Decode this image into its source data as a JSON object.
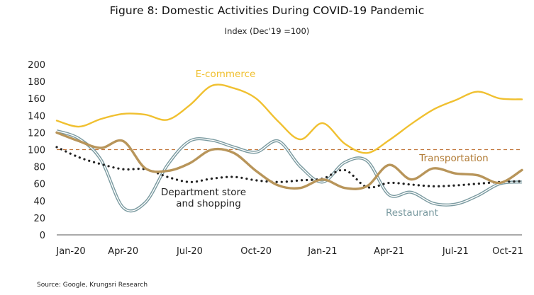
{
  "title": "Figure 8: Domestic Activities During COVID-19 Pandemic",
  "subtitle": "Index (Dec'19 =100)",
  "source": "Source:  Google,  Krungsri  Research",
  "chart_data": {
    "type": "line",
    "ylim": [
      0,
      200
    ],
    "yticks": [
      "0",
      "20",
      "40",
      "60",
      "80",
      "100",
      "120",
      "140",
      "160",
      "180",
      "200"
    ],
    "xticks": [
      "Jan-20",
      "Apr-20",
      "Jul-20",
      "Oct-20",
      "Jan-21",
      "Apr-21",
      "Jul-21",
      "Oct-21"
    ],
    "x": [
      "Jan-20",
      "Feb-20",
      "Mar-20",
      "Apr-20",
      "May-20",
      "Jun-20",
      "Jul-20",
      "Aug-20",
      "Sep-20",
      "Oct-20",
      "Nov-20",
      "Dec-20",
      "Jan-21",
      "Feb-21",
      "Mar-21",
      "Apr-21",
      "May-21",
      "Jun-21",
      "Jul-21",
      "Aug-21",
      "Sep-21",
      "Oct-21"
    ],
    "reference_line": 100,
    "series": [
      {
        "name": "E-commerce",
        "color": "#f0c030",
        "style": "solid",
        "values": [
          134,
          127,
          136,
          142,
          141,
          135,
          152,
          175,
          172,
          160,
          133,
          112,
          131,
          107,
          96,
          111,
          130,
          147,
          158,
          168,
          160,
          159
        ]
      },
      {
        "name": "Transportation",
        "color": "#b8955a",
        "style": "solid",
        "values": [
          120,
          110,
          102,
          110,
          78,
          75,
          84,
          100,
          96,
          75,
          58,
          55,
          65,
          55,
          57,
          82,
          65,
          78,
          72,
          70,
          61,
          76
        ]
      },
      {
        "name": "Restaurant",
        "color": "#7a9aa0",
        "style": "double",
        "values": [
          122,
          113,
          88,
          32,
          38,
          82,
          110,
          111,
          103,
          97,
          110,
          80,
          62,
          85,
          87,
          47,
          50,
          37,
          36,
          46,
          60,
          62
        ]
      },
      {
        "name": "Department store and shopping",
        "color": "#222222",
        "style": "dotted",
        "values": [
          103,
          91,
          83,
          77,
          77,
          68,
          62,
          66,
          68,
          64,
          62,
          64,
          66,
          76,
          56,
          61,
          59,
          57,
          58,
          60,
          62,
          63
        ]
      }
    ]
  }
}
